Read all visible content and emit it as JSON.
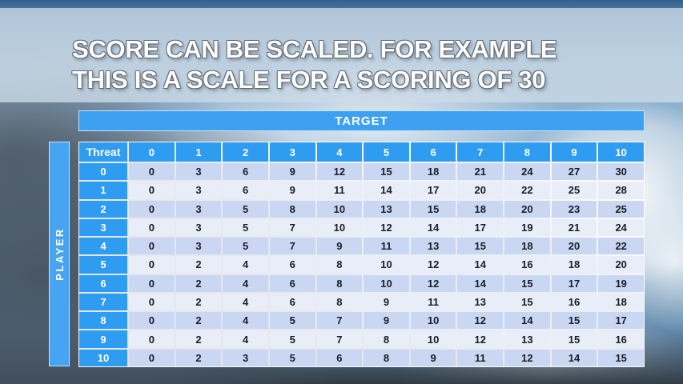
{
  "slide": {
    "title_line1": "SCORE CAN BE SCALED. FOR EXAMPLE",
    "title_line2": "THIS IS A SCALE FOR A SCORING OF 30"
  },
  "table": {
    "target_label": "TARGET",
    "player_label": "PLAYER",
    "corner_label": "Threat",
    "col_headers": [
      "0",
      "1",
      "2",
      "3",
      "4",
      "5",
      "6",
      "7",
      "8",
      "9",
      "10"
    ],
    "row_headers": [
      "0",
      "1",
      "2",
      "3",
      "4",
      "5",
      "6",
      "7",
      "8",
      "9",
      "10"
    ],
    "rows": [
      [
        0,
        3,
        6,
        9,
        12,
        15,
        18,
        21,
        24,
        27,
        30
      ],
      [
        0,
        3,
        6,
        9,
        11,
        14,
        17,
        20,
        22,
        25,
        28
      ],
      [
        0,
        3,
        5,
        8,
        10,
        13,
        15,
        18,
        20,
        23,
        25
      ],
      [
        0,
        3,
        5,
        7,
        10,
        12,
        14,
        17,
        19,
        21,
        24
      ],
      [
        0,
        3,
        5,
        7,
        9,
        11,
        13,
        15,
        18,
        20,
        22
      ],
      [
        0,
        2,
        4,
        6,
        8,
        10,
        12,
        14,
        16,
        18,
        20
      ],
      [
        0,
        2,
        4,
        6,
        8,
        10,
        12,
        14,
        15,
        17,
        19
      ],
      [
        0,
        2,
        4,
        6,
        8,
        9,
        11,
        13,
        15,
        16,
        18
      ],
      [
        0,
        2,
        4,
        5,
        7,
        9,
        10,
        12,
        14,
        15,
        17
      ],
      [
        0,
        2,
        4,
        5,
        7,
        8,
        10,
        12,
        13,
        15,
        16
      ],
      [
        0,
        2,
        3,
        5,
        6,
        8,
        9,
        11,
        12,
        14,
        15
      ]
    ]
  },
  "colors": {
    "header_blue": "#2e9cf0",
    "banner_blue": "#3da0f0",
    "player_bar_blue": "#47a4f0",
    "row_even": "#cad7f3",
    "row_odd": "#e9edf8",
    "cell_text": "#1b1c24",
    "title_text": "#ffffff"
  }
}
